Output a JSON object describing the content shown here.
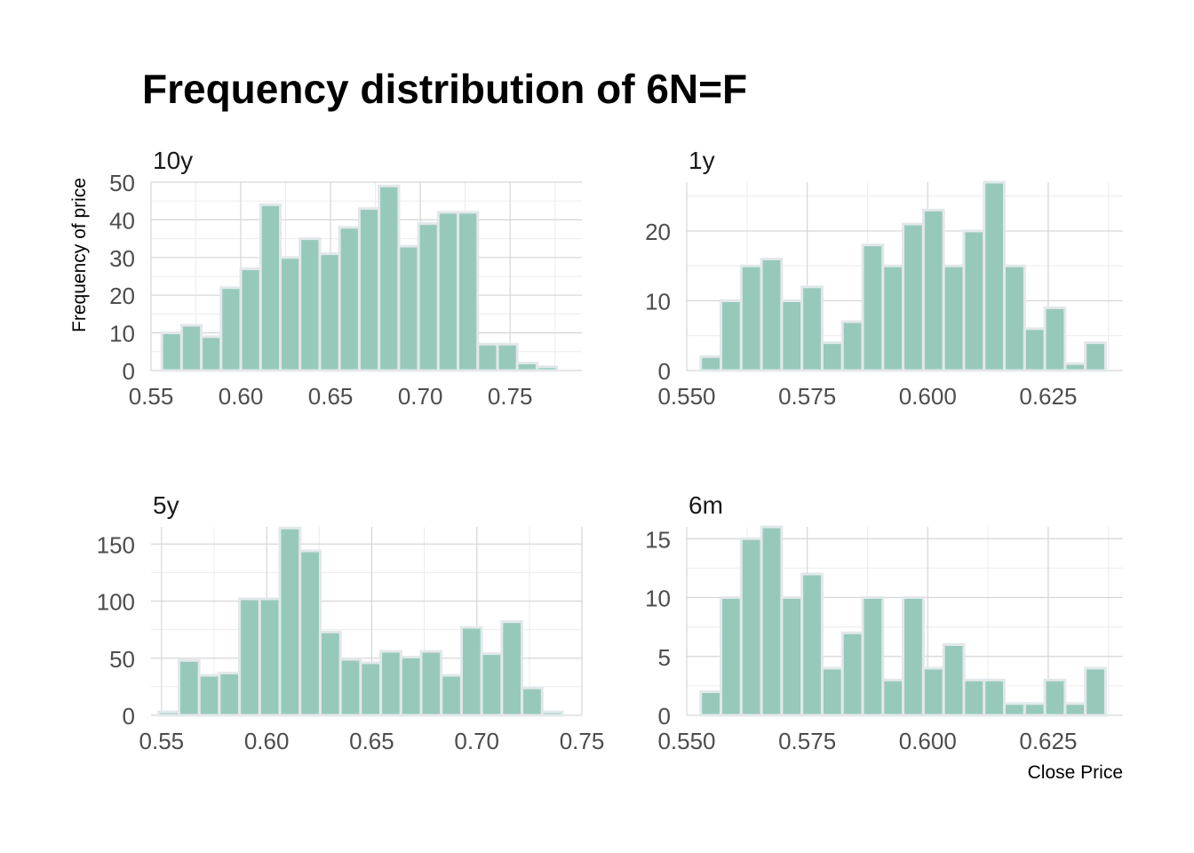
{
  "chart_data": {
    "type": "bar",
    "title": "Frequency distribution of 6N=F",
    "xlabel": "Close Price",
    "ylabel": "Frequency of price",
    "bar_color": "#97c9bb",
    "bar_edge_color": "#e2e8ea",
    "grid": true,
    "facets": [
      {
        "name": "10y",
        "bin_width": 0.011,
        "bin_starts": [
          0.556,
          0.567,
          0.578,
          0.589,
          0.6,
          0.611,
          0.622,
          0.633,
          0.644,
          0.655,
          0.666,
          0.677,
          0.688,
          0.699,
          0.71,
          0.721,
          0.732,
          0.743,
          0.754,
          0.765
        ],
        "values": [
          10,
          12,
          9,
          22,
          27,
          44,
          30,
          35,
          31,
          38,
          43,
          49,
          33,
          39,
          42,
          42,
          7,
          7,
          2,
          1
        ],
        "xlim": [
          0.55,
          0.79
        ],
        "ylim": [
          0,
          50
        ],
        "x_ticks": [
          0.55,
          0.6,
          0.65,
          0.7,
          0.75
        ],
        "x_tick_labels": [
          "0.55",
          "0.60",
          "0.65",
          "0.70",
          "0.75"
        ],
        "y_ticks": [
          0,
          10,
          20,
          30,
          40,
          50
        ],
        "y_tick_labels": [
          "0",
          "10",
          "20",
          "30",
          "40",
          "50"
        ]
      },
      {
        "name": "1y",
        "bin_width": 0.0042,
        "bin_starts": [
          0.5529,
          0.5571,
          0.5613,
          0.5655,
          0.5697,
          0.5739,
          0.5781,
          0.5823,
          0.5865,
          0.5907,
          0.5949,
          0.5991,
          0.6033,
          0.6075,
          0.6117,
          0.6159,
          0.6201,
          0.6243,
          0.6285,
          0.6327
        ],
        "values": [
          2,
          10,
          15,
          16,
          10,
          12,
          4,
          7,
          18,
          15,
          21,
          23,
          15,
          20,
          27,
          15,
          6,
          9,
          1,
          4
        ],
        "xlim": [
          0.55,
          0.6405
        ],
        "ylim": [
          0,
          27
        ],
        "x_ticks": [
          0.55,
          0.575,
          0.6,
          0.625
        ],
        "x_tick_labels": [
          "0.550",
          "0.575",
          "0.600",
          "0.625"
        ],
        "y_ticks": [
          0,
          10,
          20
        ],
        "y_tick_labels": [
          "0",
          "10",
          "20"
        ]
      },
      {
        "name": "5y",
        "bin_width": 0.0096,
        "bin_starts": [
          0.5487,
          0.5583,
          0.5679,
          0.5775,
          0.5871,
          0.5967,
          0.6063,
          0.6159,
          0.6255,
          0.6351,
          0.6447,
          0.6543,
          0.6639,
          0.6735,
          0.6831,
          0.6927,
          0.7023,
          0.7119,
          0.7215,
          0.7311
        ],
        "values": [
          3,
          48,
          35,
          37,
          102,
          102,
          164,
          144,
          73,
          49,
          46,
          56,
          51,
          56,
          35,
          77,
          54,
          82,
          24,
          3
        ],
        "xlim": [
          0.545,
          0.75
        ],
        "ylim": [
          0,
          165
        ],
        "x_ticks": [
          0.55,
          0.6,
          0.65,
          0.7,
          0.75
        ],
        "x_tick_labels": [
          "0.55",
          "0.60",
          "0.65",
          "0.70",
          "0.75"
        ],
        "y_ticks": [
          0,
          50,
          100,
          150
        ],
        "y_tick_labels": [
          "0",
          "50",
          "100",
          "150"
        ]
      },
      {
        "name": "6m",
        "bin_width": 0.0042,
        "bin_starts": [
          0.5529,
          0.5571,
          0.5613,
          0.5655,
          0.5697,
          0.5739,
          0.5781,
          0.5823,
          0.5865,
          0.5907,
          0.5949,
          0.5991,
          0.6033,
          0.6075,
          0.6117,
          0.6159,
          0.6201,
          0.6243,
          0.6285,
          0.6327
        ],
        "values": [
          2,
          10,
          15,
          16,
          10,
          12,
          4,
          7,
          10,
          3,
          10,
          4,
          6,
          3,
          3,
          1,
          1,
          3,
          1,
          4
        ],
        "xlim": [
          0.55,
          0.6405
        ],
        "ylim": [
          0,
          16
        ],
        "x_ticks": [
          0.55,
          0.575,
          0.6,
          0.625
        ],
        "x_tick_labels": [
          "0.550",
          "0.575",
          "0.600",
          "0.625"
        ],
        "y_ticks": [
          0,
          5,
          10,
          15
        ],
        "y_tick_labels": [
          "0",
          "5",
          "10",
          "15"
        ]
      }
    ]
  }
}
